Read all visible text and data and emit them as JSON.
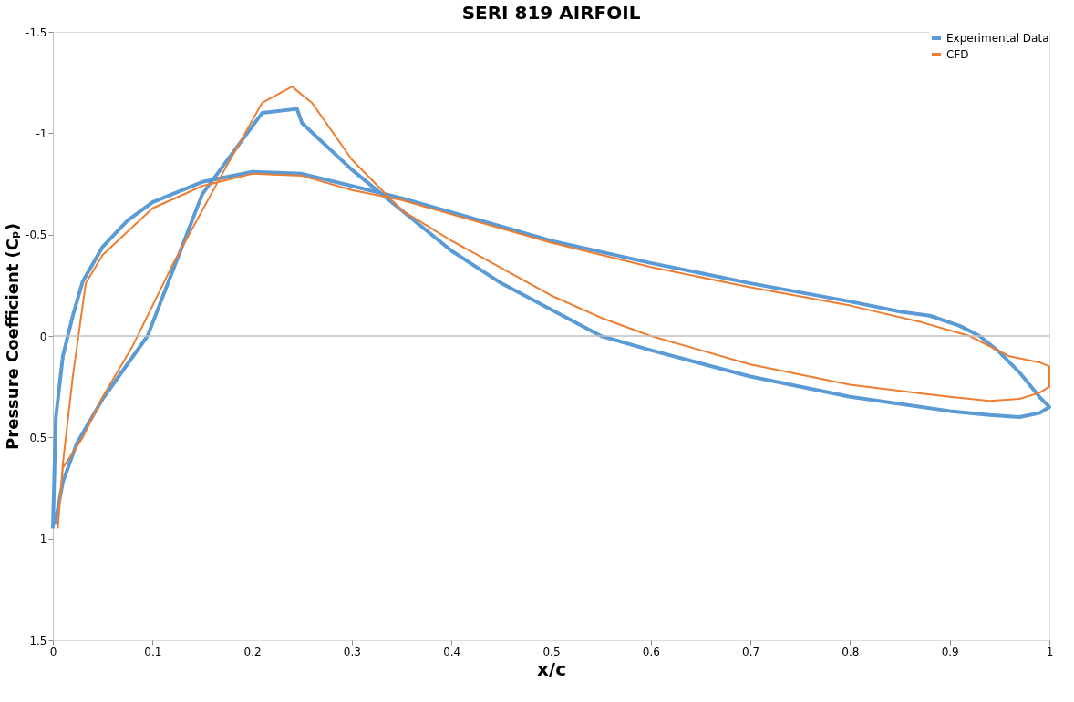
{
  "chart_data": {
    "type": "line",
    "title": "SERI 819 AIRFOIL",
    "xlabel": "x/c",
    "ylabel": "Pressure Coefficient (Cₚ)",
    "xlim": [
      0,
      1
    ],
    "xticks": [
      0,
      0.1,
      0.2,
      0.3,
      0.4,
      0.5,
      0.6,
      0.7,
      0.8,
      0.9,
      1
    ],
    "ylim": [
      1.5,
      -1.5
    ],
    "yticks": [
      -1.5,
      -1,
      -0.5,
      0,
      0.5,
      1,
      1.5
    ],
    "grid": false,
    "legend": "top right",
    "line_style": "solid",
    "marker": "none",
    "ref_lines": [
      {
        "axis": "y",
        "value": 0,
        "color": "#bfbfbf"
      }
    ],
    "series": [
      {
        "name": "Experimental Data",
        "color": "#5b9bd5",
        "x": [
          0,
          0.003,
          0.01,
          0.02,
          0.03,
          0.05,
          0.075,
          0.1,
          0.15,
          0.2,
          0.25,
          0.3,
          0.35,
          0.4,
          0.45,
          0.5,
          0.6,
          0.7,
          0.8,
          0.85,
          0.88,
          0.91,
          0.93,
          0.95,
          0.97,
          0.99,
          1.0,
          0.99,
          0.97,
          0.94,
          0.9,
          0.8,
          0.7,
          0.6,
          0.55,
          0.5,
          0.45,
          0.4,
          0.35,
          0.3,
          0.25,
          0.245,
          0.21,
          0.15,
          0.095,
          0.05,
          0.024,
          0.01,
          0.002
        ],
        "values": [
          0.95,
          0.4,
          0.1,
          -0.1,
          -0.27,
          -0.44,
          -0.57,
          -0.66,
          -0.76,
          -0.81,
          -0.8,
          -0.74,
          -0.68,
          -0.61,
          -0.54,
          -0.47,
          -0.36,
          -0.26,
          -0.17,
          -0.12,
          -0.1,
          -0.05,
          0.0,
          0.08,
          0.18,
          0.3,
          0.35,
          0.38,
          0.4,
          0.39,
          0.37,
          0.3,
          0.2,
          0.07,
          0.0,
          -0.13,
          -0.26,
          -0.42,
          -0.62,
          -0.82,
          -1.05,
          -1.12,
          -1.1,
          -0.7,
          0.0,
          0.31,
          0.53,
          0.72,
          0.93
        ]
      },
      {
        "name": "CFD",
        "color": "#ed7d31",
        "x": [
          0.005,
          0.01,
          0.02,
          0.033,
          0.05,
          0.1,
          0.15,
          0.2,
          0.25,
          0.3,
          0.35,
          0.4,
          0.5,
          0.6,
          0.7,
          0.8,
          0.87,
          0.92,
          0.96,
          0.99,
          1.0,
          1.0,
          0.99,
          0.97,
          0.94,
          0.9,
          0.8,
          0.7,
          0.6,
          0.55,
          0.5,
          0.4,
          0.35,
          0.3,
          0.26,
          0.24,
          0.21,
          0.17,
          0.12,
          0.08,
          0.05,
          0.03,
          0.01,
          0.005
        ],
        "values": [
          0.95,
          0.63,
          0.2,
          -0.26,
          -0.4,
          -0.63,
          -0.74,
          -0.8,
          -0.79,
          -0.72,
          -0.67,
          -0.6,
          -0.46,
          -0.34,
          -0.24,
          -0.15,
          -0.07,
          0.0,
          0.1,
          0.13,
          0.15,
          0.25,
          0.28,
          0.31,
          0.32,
          0.3,
          0.24,
          0.14,
          0.0,
          -0.09,
          -0.2,
          -0.47,
          -0.62,
          -0.87,
          -1.15,
          -1.23,
          -1.15,
          -0.8,
          -0.35,
          0.05,
          0.3,
          0.5,
          0.65,
          0.93
        ]
      }
    ]
  }
}
